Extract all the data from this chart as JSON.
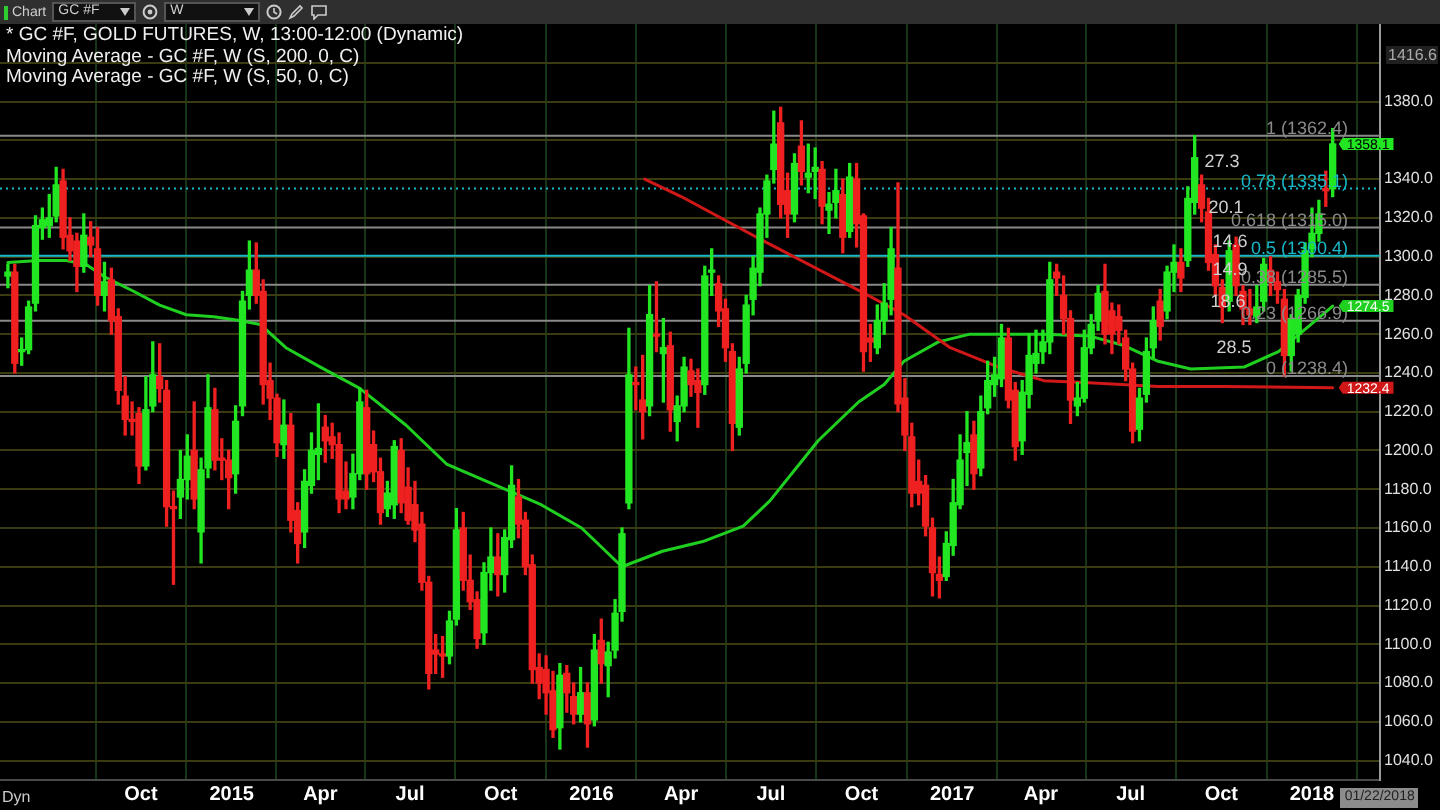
{
  "chart_data": {
    "type": "candlestick",
    "title": "* GC #F, GOLD FUTURES, W, 13:00-12:00 (Dynamic)",
    "annotations": [
      "Moving Average - GC #F, W (S, 200, 0, C)",
      "Moving Average - GC #F, W (S, 50, 0, C)",
      "Chart",
      "GC #F",
      "W",
      "Dyn",
      "01/22/2018",
      "1416.6",
      "27.3",
      "20.1",
      "14.6",
      "14.9",
      "18.6",
      "28.5"
    ],
    "series": [
      {
        "value_labels": [
          null,
          null,
          null,
          null,
          null,
          null,
          null,
          null,
          null,
          null,
          null,
          null,
          null,
          null,
          null,
          null,
          null,
          null,
          null,
          null,
          null,
          null,
          null,
          null,
          null,
          null,
          null,
          null,
          null,
          null,
          null,
          null,
          null,
          null,
          null,
          null,
          null,
          null,
          null,
          null,
          null,
          null,
          null,
          null,
          null,
          null,
          null,
          null,
          null,
          null,
          null,
          null,
          null,
          null,
          null,
          null,
          null,
          null,
          null,
          null,
          null,
          null,
          null,
          null,
          null,
          null,
          null,
          null,
          null,
          null,
          null,
          null,
          null,
          null,
          null,
          null,
          null,
          null,
          null,
          null,
          null,
          null,
          null,
          null,
          null,
          null,
          null,
          null,
          null,
          null,
          null,
          null,
          null,
          null,
          null,
          null,
          null,
          null,
          null,
          null,
          null,
          null,
          null,
          null,
          null,
          null,
          null,
          null,
          null,
          null,
          null,
          null,
          null,
          null,
          null,
          null,
          null,
          null,
          null,
          null,
          null,
          null,
          null,
          null,
          null,
          null,
          null,
          null,
          null,
          null,
          null,
          null,
          null,
          null,
          null,
          null,
          null,
          null,
          null,
          null,
          null,
          null,
          null,
          null,
          null,
          null,
          null,
          null,
          null,
          null,
          null,
          null,
          null,
          null,
          null,
          null,
          null,
          null,
          null,
          null,
          null,
          null,
          null,
          null,
          null,
          null,
          null,
          null,
          null,
          null,
          null,
          null,
          null,
          null,
          null,
          null,
          null,
          null,
          null,
          null,
          null,
          null,
          null,
          null,
          null,
          null,
          null,
          null,
          null,
          null,
          null,
          null,
          "1358.1"
        ],
        "x": [
          "2014-05-19",
          "2014-05-26",
          "2014-06-02",
          "2014-06-09",
          "2014-06-16",
          "2014-06-23",
          "2014-06-30",
          "2014-07-07",
          "2014-07-14",
          "2014-07-21",
          "2014-07-28",
          "2014-08-04",
          "2014-08-11",
          "2014-08-18",
          "2014-08-25",
          "2014-09-01",
          "2014-09-08",
          "2014-09-15",
          "2014-09-22",
          "2014-09-29",
          "2014-10-06",
          "2014-10-13",
          "2014-10-20",
          "2014-10-27",
          "2014-11-03",
          "2014-11-10",
          "2014-11-17",
          "2014-11-24",
          "2014-12-01",
          "2014-12-08",
          "2014-12-15",
          "2014-12-22",
          "2014-12-29",
          "2015-01-05",
          "2015-01-12",
          "2015-01-19",
          "2015-01-26",
          "2015-02-02",
          "2015-02-09",
          "2015-02-16",
          "2015-02-23",
          "2015-03-02",
          "2015-03-09",
          "2015-03-16",
          "2015-03-23",
          "2015-03-30",
          "2015-04-06",
          "2015-04-13",
          "2015-04-20",
          "2015-04-27",
          "2015-05-04",
          "2015-05-11",
          "2015-05-18",
          "2015-05-25",
          "2015-06-01",
          "2015-06-08",
          "2015-06-15",
          "2015-06-22",
          "2015-06-29",
          "2015-07-06",
          "2015-07-13",
          "2015-07-20",
          "2015-07-27",
          "2015-08-03",
          "2015-08-10",
          "2015-08-17",
          "2015-08-24",
          "2015-08-31",
          "2015-09-07",
          "2015-09-14",
          "2015-09-21",
          "2015-09-28",
          "2015-10-05",
          "2015-10-12",
          "2015-10-19",
          "2015-10-26",
          "2015-11-02",
          "2015-11-09",
          "2015-11-16",
          "2015-11-23",
          "2015-11-30",
          "2015-12-07",
          "2015-12-14",
          "2015-12-21",
          "2015-12-28",
          "2016-01-04",
          "2016-01-11",
          "2016-01-18",
          "2016-01-25",
          "2016-02-01",
          "2016-02-08",
          "2016-02-15",
          "2016-02-22",
          "2016-02-29",
          "2016-03-07",
          "2016-03-14",
          "2016-03-21",
          "2016-03-28",
          "2016-04-04",
          "2016-04-11",
          "2016-04-18",
          "2016-04-25",
          "2016-05-02",
          "2016-05-09",
          "2016-05-16",
          "2016-05-23",
          "2016-05-30",
          "2016-06-06",
          "2016-06-13",
          "2016-06-20",
          "2016-06-27",
          "2016-07-04",
          "2016-07-11",
          "2016-07-18",
          "2016-07-25",
          "2016-08-01",
          "2016-08-08",
          "2016-08-15",
          "2016-08-22",
          "2016-08-29",
          "2016-09-05",
          "2016-09-12",
          "2016-09-19",
          "2016-09-26",
          "2016-10-03",
          "2016-10-10",
          "2016-10-17",
          "2016-10-24",
          "2016-10-31",
          "2016-11-07",
          "2016-11-14",
          "2016-11-21",
          "2016-11-28",
          "2016-12-05",
          "2016-12-12",
          "2016-12-19",
          "2016-12-26",
          "2017-01-02",
          "2017-01-09",
          "2017-01-16",
          "2017-01-23",
          "2017-01-30",
          "2017-02-06",
          "2017-02-13",
          "2017-02-20",
          "2017-02-27",
          "2017-03-06",
          "2017-03-13",
          "2017-03-20",
          "2017-03-27",
          "2017-04-03",
          "2017-04-10",
          "2017-04-17",
          "2017-04-24",
          "2017-05-01",
          "2017-05-08",
          "2017-05-15",
          "2017-05-22",
          "2017-05-29",
          "2017-06-05",
          "2017-06-12",
          "2017-06-19",
          "2017-06-26",
          "2017-07-03",
          "2017-07-10",
          "2017-07-17",
          "2017-07-24",
          "2017-07-31",
          "2017-08-07",
          "2017-08-14",
          "2017-08-21",
          "2017-08-28",
          "2017-09-04",
          "2017-09-11",
          "2017-09-18",
          "2017-09-25",
          "2017-10-02",
          "2017-10-09",
          "2017-10-16",
          "2017-10-23",
          "2017-10-30",
          "2017-11-06",
          "2017-11-13",
          "2017-11-20",
          "2017-11-27",
          "2017-12-04",
          "2017-12-11",
          "2017-12-18",
          "2017-12-25",
          "2018-01-01",
          "2018-01-08",
          "2018-01-15",
          "2018-01-22"
        ],
        "ohlc": [
          [
            1290,
            1296,
            1284,
            1292
          ],
          [
            1292,
            1296,
            1240,
            1245
          ],
          [
            1251,
            1258,
            1244,
            1252
          ],
          [
            1252,
            1277,
            1250,
            1274
          ],
          [
            1276,
            1321,
            1272,
            1316
          ],
          [
            1315,
            1325,
            1309,
            1319
          ],
          [
            1316,
            1332,
            1310,
            1320
          ],
          [
            1321,
            1346,
            1318,
            1337
          ],
          [
            1339,
            1345,
            1304,
            1310
          ],
          [
            1311,
            1320,
            1298,
            1303
          ],
          [
            1308,
            1312,
            1282,
            1295
          ],
          [
            1295,
            1322,
            1292,
            1311
          ],
          [
            1310,
            1318,
            1300,
            1306
          ],
          [
            1304,
            1315,
            1275,
            1280
          ],
          [
            1280,
            1297,
            1272,
            1287
          ],
          [
            1288,
            1294,
            1260,
            1267
          ],
          [
            1269,
            1273,
            1224,
            1231
          ],
          [
            1228,
            1238,
            1208,
            1216
          ],
          [
            1216,
            1225,
            1208,
            1215
          ],
          [
            1219,
            1222,
            1183,
            1192
          ],
          [
            1192,
            1238,
            1190,
            1221
          ],
          [
            1223,
            1256,
            1220,
            1239
          ],
          [
            1238,
            1255,
            1225,
            1232
          ],
          [
            1231,
            1236,
            1161,
            1171
          ],
          [
            1171,
            1179,
            1131,
            1170
          ],
          [
            1176,
            1200,
            1165,
            1185
          ],
          [
            1185,
            1208,
            1175,
            1197
          ],
          [
            1200,
            1225,
            1170,
            1175
          ],
          [
            1158,
            1196,
            1142,
            1190
          ],
          [
            1191,
            1239,
            1186,
            1222
          ],
          [
            1221,
            1232,
            1190,
            1195
          ],
          [
            1195,
            1206,
            1185,
            1195
          ],
          [
            1195,
            1200,
            1170,
            1186
          ],
          [
            1188,
            1223,
            1178,
            1215
          ],
          [
            1223,
            1282,
            1218,
            1277
          ],
          [
            1280,
            1308,
            1273,
            1293
          ],
          [
            1293,
            1307,
            1276,
            1280
          ],
          [
            1282,
            1288,
            1224,
            1234
          ],
          [
            1236,
            1245,
            1216,
            1227
          ],
          [
            1227,
            1229,
            1197,
            1204
          ],
          [
            1203,
            1226,
            1196,
            1213
          ],
          [
            1213,
            1219,
            1158,
            1164
          ],
          [
            1169,
            1173,
            1142,
            1152
          ],
          [
            1158,
            1190,
            1150,
            1184
          ],
          [
            1182,
            1209,
            1178,
            1200
          ],
          [
            1198,
            1224,
            1185,
            1201
          ],
          [
            1212,
            1218,
            1194,
            1205
          ],
          [
            1207,
            1214,
            1196,
            1203
          ],
          [
            1203,
            1209,
            1168,
            1175
          ],
          [
            1179,
            1194,
            1170,
            1175
          ],
          [
            1176,
            1198,
            1170,
            1188
          ],
          [
            1188,
            1232,
            1185,
            1225
          ],
          [
            1222,
            1231,
            1180,
            1188
          ],
          [
            1203,
            1210,
            1184,
            1189
          ],
          [
            1189,
            1196,
            1162,
            1168
          ],
          [
            1170,
            1184,
            1166,
            1178
          ],
          [
            1172,
            1205,
            1165,
            1202
          ],
          [
            1200,
            1206,
            1168,
            1173
          ],
          [
            1181,
            1191,
            1162,
            1164
          ],
          [
            1172,
            1184,
            1153,
            1159
          ],
          [
            1162,
            1168,
            1128,
            1132
          ],
          [
            1132,
            1135,
            1077,
            1085
          ],
          [
            1097,
            1105,
            1085,
            1095
          ],
          [
            1094,
            1104,
            1083,
            1094
          ],
          [
            1094,
            1117,
            1090,
            1112
          ],
          [
            1113,
            1170,
            1110,
            1159
          ],
          [
            1160,
            1168,
            1128,
            1133
          ],
          [
            1133,
            1146,
            1118,
            1122
          ],
          [
            1123,
            1127,
            1098,
            1103
          ],
          [
            1106,
            1142,
            1100,
            1137
          ],
          [
            1137,
            1160,
            1128,
            1145
          ],
          [
            1145,
            1157,
            1125,
            1136
          ],
          [
            1136,
            1159,
            1127,
            1155
          ],
          [
            1154,
            1192,
            1150,
            1182
          ],
          [
            1176,
            1185,
            1155,
            1162
          ],
          [
            1164,
            1168,
            1136,
            1140
          ],
          [
            1141,
            1146,
            1080,
            1087
          ],
          [
            1088,
            1095,
            1072,
            1080
          ],
          [
            1087,
            1094,
            1064,
            1075
          ],
          [
            1076,
            1086,
            1052,
            1056
          ],
          [
            1057,
            1090,
            1046,
            1084
          ],
          [
            1085,
            1089,
            1065,
            1075
          ],
          [
            1073,
            1080,
            1059,
            1064
          ],
          [
            1064,
            1088,
            1060,
            1075
          ],
          [
            1075,
            1080,
            1047,
            1059
          ],
          [
            1061,
            1105,
            1058,
            1097
          ],
          [
            1102,
            1113,
            1080,
            1090
          ],
          [
            1089,
            1101,
            1073,
            1096
          ],
          [
            1097,
            1123,
            1093,
            1116
          ],
          [
            1117,
            1160,
            1112,
            1157
          ],
          [
            1173,
            1263,
            1170,
            1239
          ],
          [
            1235,
            1243,
            1221,
            1234
          ],
          [
            1226,
            1249,
            1206,
            1220
          ],
          [
            1223,
            1285,
            1218,
            1270
          ],
          [
            1260,
            1287,
            1251,
            1259
          ],
          [
            1250,
            1268,
            1225,
            1253
          ],
          [
            1254,
            1261,
            1210,
            1221
          ],
          [
            1215,
            1228,
            1205,
            1223
          ],
          [
            1223,
            1248,
            1220,
            1243
          ],
          [
            1241,
            1247,
            1228,
            1234
          ],
          [
            1236,
            1242,
            1212,
            1230
          ],
          [
            1234,
            1295,
            1229,
            1290
          ],
          [
            1292,
            1304,
            1280,
            1293
          ],
          [
            1286,
            1290,
            1264,
            1272
          ],
          [
            1273,
            1278,
            1246,
            1253
          ],
          [
            1251,
            1255,
            1200,
            1214
          ],
          [
            1212,
            1248,
            1208,
            1242
          ],
          [
            1245,
            1280,
            1240,
            1275
          ],
          [
            1278,
            1300,
            1270,
            1294
          ],
          [
            1292,
            1325,
            1285,
            1322
          ],
          [
            1322,
            1342,
            1310,
            1339
          ],
          [
            1345,
            1375,
            1338,
            1358
          ],
          [
            1369,
            1377,
            1320,
            1327
          ],
          [
            1334,
            1343,
            1310,
            1322
          ],
          [
            1322,
            1353,
            1318,
            1348
          ],
          [
            1357,
            1370,
            1337,
            1344
          ],
          [
            1341,
            1358,
            1333,
            1343
          ],
          [
            1344,
            1356,
            1330,
            1346
          ],
          [
            1345,
            1349,
            1317,
            1326
          ],
          [
            1324,
            1333,
            1312,
            1327
          ],
          [
            1328,
            1345,
            1320,
            1334
          ],
          [
            1332,
            1340,
            1302,
            1310
          ],
          [
            1313,
            1348,
            1310,
            1341
          ],
          [
            1340,
            1348,
            1305,
            1317
          ],
          [
            1321,
            1322,
            1241,
            1251
          ],
          [
            1258,
            1265,
            1246,
            1256
          ],
          [
            1253,
            1275,
            1250,
            1267
          ],
          [
            1267,
            1286,
            1260,
            1276
          ],
          [
            1278,
            1315,
            1270,
            1304
          ],
          [
            1294,
            1338,
            1220,
            1224
          ],
          [
            1227,
            1237,
            1200,
            1208
          ],
          [
            1207,
            1214,
            1171,
            1178
          ],
          [
            1184,
            1195,
            1172,
            1178
          ],
          [
            1182,
            1187,
            1156,
            1161
          ],
          [
            1160,
            1165,
            1125,
            1137
          ],
          [
            1136,
            1145,
            1124,
            1133
          ],
          [
            1135,
            1158,
            1133,
            1152
          ],
          [
            1151,
            1185,
            1146,
            1173
          ],
          [
            1172,
            1208,
            1170,
            1195
          ],
          [
            1199,
            1220,
            1182,
            1204
          ],
          [
            1208,
            1215,
            1180,
            1188
          ],
          [
            1191,
            1228,
            1187,
            1220
          ],
          [
            1222,
            1246,
            1219,
            1236
          ],
          [
            1234,
            1248,
            1228,
            1239
          ],
          [
            1237,
            1265,
            1233,
            1258
          ],
          [
            1258,
            1263,
            1222,
            1226
          ],
          [
            1231,
            1235,
            1195,
            1202
          ],
          [
            1205,
            1236,
            1198,
            1230
          ],
          [
            1229,
            1260,
            1222,
            1249
          ],
          [
            1245,
            1262,
            1240,
            1250
          ],
          [
            1251,
            1262,
            1245,
            1256
          ],
          [
            1256,
            1297,
            1250,
            1288
          ],
          [
            1292,
            1296,
            1280,
            1289
          ],
          [
            1280,
            1290,
            1260,
            1268
          ],
          [
            1268,
            1272,
            1214,
            1226
          ],
          [
            1223,
            1235,
            1218,
            1227
          ],
          [
            1227,
            1262,
            1225,
            1253
          ],
          [
            1253,
            1270,
            1250,
            1265
          ],
          [
            1267,
            1285,
            1262,
            1281
          ],
          [
            1282,
            1296,
            1255,
            1260
          ],
          [
            1272,
            1276,
            1250,
            1260
          ],
          [
            1269,
            1275,
            1255,
            1262
          ],
          [
            1258,
            1262,
            1236,
            1242
          ],
          [
            1242,
            1245,
            1204,
            1210
          ],
          [
            1211,
            1232,
            1205,
            1227
          ],
          [
            1229,
            1258,
            1225,
            1251
          ],
          [
            1253,
            1274,
            1248,
            1267
          ],
          [
            1277,
            1283,
            1257,
            1264
          ],
          [
            1272,
            1295,
            1268,
            1292
          ],
          [
            1292,
            1306,
            1282,
            1297
          ],
          [
            1297,
            1304,
            1282,
            1289
          ],
          [
            1298,
            1336,
            1295,
            1330
          ],
          [
            1328,
            1362.4,
            1322,
            1351
          ],
          [
            1337,
            1342,
            1318,
            1325
          ],
          [
            1323,
            1330,
            1293,
            1297
          ],
          [
            1301,
            1306,
            1280,
            1285
          ],
          [
            1284,
            1288,
            1266,
            1274
          ],
          [
            1277,
            1308,
            1272,
            1303
          ],
          [
            1306,
            1310,
            1280,
            1285
          ],
          [
            1282,
            1285,
            1265,
            1273
          ],
          [
            1273,
            1283,
            1265,
            1270
          ],
          [
            1269,
            1285,
            1266,
            1274
          ],
          [
            1277,
            1299,
            1272,
            1296
          ],
          [
            1293,
            1300,
            1280,
            1287
          ],
          [
            1287,
            1292,
            1276,
            1283
          ],
          [
            1278,
            1283,
            1238.4,
            1249
          ],
          [
            1249,
            1270,
            1241,
            1268
          ],
          [
            1260,
            1283,
            1256,
            1280
          ],
          [
            1279,
            1307,
            1276,
            1303
          ],
          [
            1304,
            1325,
            1300,
            1312
          ],
          [
            1312,
            1329,
            1308,
            1322
          ],
          [
            1335,
            1344,
            1326,
            1334
          ],
          [
            1335,
            1366,
            1331,
            1358.1
          ]
        ],
        "colors": [
          "#22e622",
          "#ee2020",
          "#22e622",
          "#22e622",
          "#22e622",
          "#22e622",
          "#22e622",
          "#22e622",
          "#ee2020",
          "#ee2020",
          "#ee2020",
          "#22e622",
          "#ee2020",
          "#ee2020",
          "#22e622",
          "#ee2020",
          "#ee2020",
          "#ee2020",
          "#ee2020",
          "#ee2020",
          "#22e622",
          "#22e622",
          "#ee2020",
          "#ee2020",
          "#ee2020",
          "#22e622",
          "#22e622",
          "#ee2020",
          "#22e622",
          "#22e622",
          "#ee2020",
          "#ee2020",
          "#ee2020",
          "#22e622",
          "#22e622",
          "#22e622",
          "#ee2020",
          "#ee2020",
          "#ee2020",
          "#ee2020",
          "#22e622",
          "#ee2020",
          "#ee2020",
          "#22e622",
          "#22e622",
          "#22e622",
          "#ee2020",
          "#ee2020",
          "#ee2020",
          "#ee2020",
          "#22e622",
          "#22e622",
          "#ee2020",
          "#ee2020",
          "#ee2020",
          "#22e622",
          "#22e622",
          "#ee2020",
          "#ee2020",
          "#ee2020",
          "#ee2020",
          "#ee2020",
          "#ee2020",
          "#ee2020",
          "#22e622",
          "#22e622",
          "#ee2020",
          "#ee2020",
          "#ee2020",
          "#22e622",
          "#22e622",
          "#ee2020",
          "#22e622",
          "#22e622",
          "#ee2020",
          "#ee2020",
          "#ee2020",
          "#ee2020",
          "#ee2020",
          "#ee2020",
          "#22e622",
          "#ee2020",
          "#ee2020",
          "#22e622",
          "#ee2020",
          "#22e622",
          "#ee2020",
          "#22e622",
          "#22e622",
          "#22e622",
          "#22e622",
          "#ee2020",
          "#ee2020",
          "#22e622",
          "#ee2020",
          "#22e622",
          "#ee2020",
          "#22e622",
          "#22e622",
          "#ee2020",
          "#ee2020",
          "#22e622",
          "#22e622",
          "#ee2020",
          "#ee2020",
          "#ee2020",
          "#22e622",
          "#22e622",
          "#22e622",
          "#22e622",
          "#22e622",
          "#22e622",
          "#ee2020",
          "#ee2020",
          "#22e622",
          "#ee2020",
          "#22e622",
          "#22e622",
          "#ee2020",
          "#22e622",
          "#22e622",
          "#ee2020",
          "#22e622",
          "#ee2020",
          "#ee2020",
          "#ee2020",
          "#22e622",
          "#22e622",
          "#22e622",
          "#ee2020",
          "#ee2020",
          "#ee2020",
          "#ee2020",
          "#ee2020",
          "#ee2020",
          "#ee2020",
          "#22e622",
          "#22e622",
          "#22e622",
          "#22e622",
          "#ee2020",
          "#22e622",
          "#22e622",
          "#22e622",
          "#22e622",
          "#ee2020",
          "#ee2020",
          "#22e622",
          "#22e622",
          "#22e622",
          "#22e622",
          "#22e622",
          "#ee2020",
          "#ee2020",
          "#ee2020",
          "#22e622",
          "#22e622",
          "#22e622",
          "#22e622",
          "#ee2020",
          "#ee2020",
          "#ee2020",
          "#ee2020",
          "#ee2020",
          "#22e622",
          "#22e622",
          "#22e622",
          "#ee2020",
          "#22e622",
          "#22e622",
          "#ee2020",
          "#22e622",
          "#22e622",
          "#ee2020",
          "#ee2020",
          "#ee2020",
          "#ee2020",
          "#22e622",
          "#ee2020",
          "#ee2020",
          "#ee2020",
          "#22e622",
          "#22e622",
          "#ee2020",
          "#ee2020",
          "#ee2020",
          "#22e622",
          "#22e622",
          "#22e622",
          "#22e622",
          "#22e622",
          "#ee2020",
          "#22e622"
        ]
      },
      {
        "type": "line",
        "color": "#d01818",
        "x": [
          "2016-02-24",
          "2016-04-01",
          "2016-06-24",
          "2016-10-04",
          "2016-11-13",
          "2016-12-30",
          "2017-02-17",
          "2017-04-04",
          "2017-05-15",
          "2017-07-29",
          "2017-10-04",
          "2018-01-22"
        ],
        "values": [
          1340,
          1331,
          1308,
          1281,
          1270,
          1253,
          1243,
          1236,
          1235,
          1233,
          1233,
          1232.4
        ],
        "value_labels": [
          null,
          null,
          null,
          null,
          null,
          null,
          null,
          null,
          null,
          null,
          null,
          "1232.4"
        ]
      },
      {
        "type": "line",
        "color": "#20d020",
        "x": [
          "2014-05-19",
          "2014-06-19",
          "2014-07-17",
          "2014-08-06",
          "2014-08-27",
          "2014-09-24",
          "2014-10-20",
          "2014-11-16",
          "2014-12-14",
          "2015-01-09",
          "2015-01-30",
          "2015-02-25",
          "2015-04-01",
          "2015-05-11",
          "2015-06-27",
          "2015-08-07",
          "2015-10-01",
          "2015-11-11",
          "2015-12-22",
          "2016-02-01",
          "2016-03-13",
          "2016-04-23",
          "2016-06-03",
          "2016-06-30",
          "2016-08-18",
          "2016-09-28",
          "2016-10-24",
          "2016-11-13",
          "2016-12-18",
          "2017-01-19",
          "2017-04-04",
          "2017-05-21",
          "2017-06-25",
          "2017-07-29",
          "2017-08-31",
          "2017-10-24",
          "2017-11-28",
          "2017-12-31",
          "2018-01-22"
        ],
        "value_labels": [
          null,
          null,
          null,
          null,
          null,
          null,
          null,
          null,
          null,
          null,
          null,
          null,
          null,
          null,
          null,
          null,
          null,
          null,
          null,
          null,
          null,
          null,
          null,
          null,
          null,
          null,
          null,
          null,
          null,
          null,
          null,
          null,
          null,
          null,
          null,
          null,
          null,
          null,
          "1274.5"
        ],
        "values": [
          1297,
          1298,
          1298,
          1296,
          1289,
          1282,
          1275,
          1270,
          1269,
          1267,
          1265,
          1253,
          1243,
          1232,
          1213,
          1193,
          1181,
          1172,
          1160,
          1140,
          1148,
          1153,
          1161,
          1174,
          1205,
          1225,
          1234,
          1246,
          1256,
          1260,
          1260,
          1259,
          1254,
          1246,
          1242,
          1243,
          1251,
          1265,
          1274.5
        ]
      }
    ],
    "ref_lines": [
      {
        "axis": "y",
        "value": 1362.4,
        "label": "1 (1362.4)",
        "color": "#8a8a8a"
      },
      {
        "axis": "y",
        "value": 1335.1,
        "label": "0.78 (1335.1)",
        "color": "#19b8c8",
        "line_style": "dotted"
      },
      {
        "axis": "y",
        "value": 1315,
        "label": "0.618 (1315.0)",
        "color": "#8a8a8a"
      },
      {
        "axis": "y",
        "value": 1300.4,
        "label": "0.5 (1300.4)",
        "color": "#19b8c8"
      },
      {
        "axis": "y",
        "value": 1285.5,
        "label": "0.38 (1285.5)",
        "color": "#8a8a8a"
      },
      {
        "axis": "y",
        "value": 1266.9,
        "label": "0.23 (1266.9)",
        "color": "#8a8a8a"
      },
      {
        "axis": "y",
        "value": 1238.4,
        "label": "0 (1238.4)",
        "color": "#8a8a8a"
      }
    ],
    "xlim": [
      "2014-05-11",
      "2018-03-11"
    ],
    "xticks": [
      {
        "value": "2014-10-01",
        "label": "Oct"
      },
      {
        "value": "2015-01-01",
        "label": "2015"
      },
      {
        "value": "2015-04-01",
        "label": "Apr"
      },
      {
        "value": "2015-07-01",
        "label": "Jul"
      },
      {
        "value": "2015-10-01",
        "label": "Oct"
      },
      {
        "value": "2016-01-01",
        "label": "2016"
      },
      {
        "value": "2016-04-01",
        "label": "Apr"
      },
      {
        "value": "2016-07-01",
        "label": "Jul"
      },
      {
        "value": "2016-10-01",
        "label": "Oct"
      },
      {
        "value": "2017-01-01",
        "label": "2017"
      },
      {
        "value": "2017-04-01",
        "label": "Apr"
      },
      {
        "value": "2017-07-01",
        "label": "Jul"
      },
      {
        "value": "2017-10-01",
        "label": "Oct"
      },
      {
        "value": "2018-01-01",
        "label": "2018"
      }
    ],
    "ylim": [
      1030,
      1420
    ],
    "yticks": [
      {
        "value": 1040,
        "label": "1040.0"
      },
      {
        "value": 1060,
        "label": "1060.0"
      },
      {
        "value": 1080,
        "label": "1080.0"
      },
      {
        "value": 1100,
        "label": "1100.0"
      },
      {
        "value": 1120,
        "label": "1120.0"
      },
      {
        "value": 1140,
        "label": "1140.0"
      },
      {
        "value": 1160,
        "label": "1160.0"
      },
      {
        "value": 1180,
        "label": "1180.0"
      },
      {
        "value": 1200,
        "label": "1200.0"
      },
      {
        "value": 1220,
        "label": "1220.0"
      },
      {
        "value": 1240,
        "label": "1240.0"
      },
      {
        "value": 1260,
        "label": "1260.0"
      },
      {
        "value": 1280,
        "label": "1280.0"
      },
      {
        "value": 1300,
        "label": "1300.0"
      },
      {
        "value": 1320,
        "label": "1320.0"
      },
      {
        "value": 1340,
        "label": "1340.0"
      },
      {
        "value": 1360,
        "label": null
      },
      {
        "value": 1380,
        "label": "1380.0"
      },
      {
        "value": 1400,
        "label": null
      }
    ],
    "grid": true
  }
}
